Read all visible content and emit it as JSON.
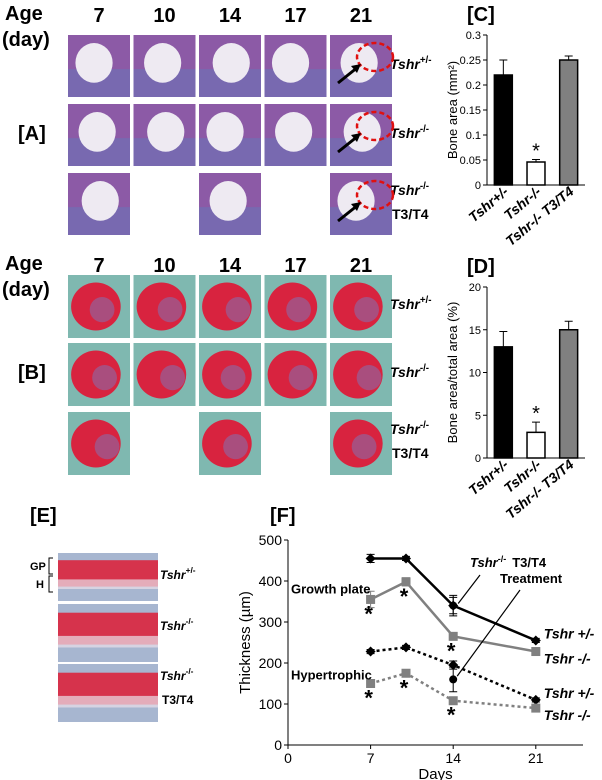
{
  "histology": [
    {
      "panel": "[A]",
      "age_label": [
        "Age",
        "(day)"
      ],
      "days": [
        "7",
        "10",
        "14",
        "17",
        "21"
      ],
      "rows": [
        {
          "gene": "Tshr",
          "genotype": "+/-"
        },
        {
          "gene": "Tshr",
          "genotype": "-/-"
        },
        {
          "gene": "Tshr",
          "genotype": "-/-",
          "treatment": "T3/T4"
        }
      ]
    },
    {
      "panel": "[B]",
      "age_label": [
        "Age",
        "(day)"
      ],
      "days": [
        "7",
        "10",
        "14",
        "17",
        "21"
      ],
      "rows": [
        {
          "gene": "Tshr",
          "genotype": "+/-"
        },
        {
          "gene": "Tshr",
          "genotype": "-/-"
        },
        {
          "gene": "Tshr",
          "genotype": "-/-",
          "treatment": "T3/T4"
        }
      ]
    }
  ],
  "growth_plate_images": {
    "panel": "[E]",
    "zones": [
      "GP",
      "H"
    ],
    "rows": [
      {
        "gene": "Tshr",
        "genotype": "+/-"
      },
      {
        "gene": "Tshr",
        "genotype": "-/-"
      },
      {
        "gene": "Tshr",
        "genotype": "-/-",
        "treatment": "T3/T4"
      }
    ]
  },
  "chart_data": [
    {
      "type": "bar",
      "title": "[C]",
      "y_label": "Bone area (mm²)",
      "categories": [
        "Tshr+/-",
        "Tshr-/-",
        "Tshr-/- T3/T4"
      ],
      "values": [
        0.22,
        0.046,
        0.25
      ],
      "errors": [
        0.03,
        0.005,
        0.008
      ],
      "colors": [
        "#000000",
        "#ffffff",
        "#808080"
      ],
      "stars": [
        null,
        "*",
        null
      ],
      "ylim": [
        0,
        0.3
      ],
      "yticks": [
        0,
        0.05,
        0.1,
        0.15,
        0.2,
        0.25,
        0.3
      ]
    },
    {
      "type": "bar",
      "title": "[D]",
      "y_label": "Bone area/total area (%)",
      "categories": [
        "Tshr+/-",
        "Tshr-/-",
        "Tshr-/- T3/T4"
      ],
      "values": [
        13,
        3,
        15
      ],
      "errors": [
        1.8,
        1.2,
        1
      ],
      "colors": [
        "#000000",
        "#ffffff",
        "#808080"
      ],
      "stars": [
        null,
        "*",
        null
      ],
      "ylim": [
        0,
        20
      ],
      "yticks": [
        0,
        5,
        10,
        15,
        20
      ]
    },
    {
      "type": "line",
      "title": "[F]",
      "x_label": "Days",
      "y_label": "Thickness (µm)",
      "x": [
        7,
        10,
        14,
        21
      ],
      "xlim": [
        0,
        25
      ],
      "xticks": [
        0,
        7,
        14,
        21
      ],
      "ylim": [
        0,
        500
      ],
      "yticks": [
        0,
        100,
        200,
        300,
        400,
        500
      ],
      "annotations": [
        "Growth plate",
        "Hypertrophic"
      ],
      "treatment_label": [
        "Tshr",
        "-/-",
        "T3/T4",
        "Treatment"
      ],
      "series": [
        {
          "name": "Tshr +/-",
          "color": "#000000",
          "dash": "solid",
          "marker": "diamond",
          "values": [
            455,
            455,
            340,
            255
          ],
          "errors": [
            10,
            5,
            20,
            5
          ],
          "stars": [
            null,
            null,
            null,
            null
          ]
        },
        {
          "name": "Tshr -/-",
          "color": "#808080",
          "dash": "solid",
          "marker": "square",
          "values": [
            355,
            398,
            265,
            228
          ],
          "errors": [
            20,
            10,
            8,
            8
          ],
          "stars": [
            "*",
            "*",
            "*",
            null
          ]
        },
        {
          "name": "Tshr +/-",
          "color": "#000000",
          "dash": "dotted",
          "marker": "diamond",
          "values": [
            228,
            238,
            195,
            110
          ],
          "errors": [
            5,
            5,
            10,
            5
          ],
          "stars": [
            null,
            null,
            null,
            null
          ]
        },
        {
          "name": "Tshr -/-",
          "color": "#808080",
          "dash": "dotted",
          "marker": "square",
          "values": [
            150,
            175,
            108,
            90
          ],
          "errors": [
            8,
            8,
            5,
            5
          ],
          "stars": [
            "*",
            "*",
            "*",
            null
          ]
        },
        {
          "color": "#000000",
          "dash": "none",
          "marker": "circle",
          "values": [
            null,
            null,
            340,
            null
          ],
          "errors": [
            null,
            null,
            25,
            null
          ]
        },
        {
          "color": "#000000",
          "dash": "none",
          "marker": "circle",
          "values": [
            null,
            null,
            160,
            null
          ],
          "errors": [
            null,
            null,
            30,
            null
          ]
        }
      ]
    }
  ]
}
